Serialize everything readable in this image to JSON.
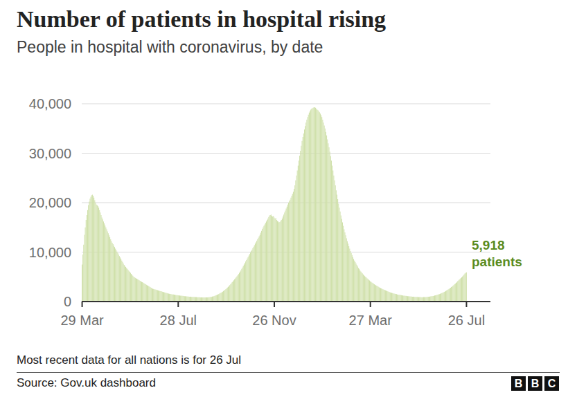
{
  "chart_data": {
    "type": "bar",
    "title": "Number of patients in hospital rising",
    "subtitle": "People in hospital with coronavirus, by date",
    "categories": [
      "29 Mar",
      null,
      null,
      null,
      null,
      null,
      null,
      null,
      null,
      null,
      null,
      null,
      null,
      null,
      null,
      null,
      null,
      null,
      null,
      null,
      null,
      null,
      null,
      null,
      null,
      null,
      null,
      null,
      null,
      null,
      null,
      null,
      null,
      null,
      null,
      null,
      null,
      null,
      null,
      null,
      null,
      null,
      null,
      null,
      null,
      null,
      null,
      null,
      null,
      null,
      null,
      null,
      null,
      null,
      null,
      null,
      null,
      null,
      null,
      null,
      null,
      null,
      null,
      null,
      null,
      null,
      null,
      null,
      null,
      null,
      null,
      null,
      null,
      null,
      null,
      null,
      null,
      null,
      null,
      null,
      null,
      null,
      null,
      null,
      null,
      null,
      null,
      null,
      null,
      null,
      null,
      null,
      null,
      null,
      null,
      null,
      null,
      null,
      null,
      null,
      null,
      null,
      null,
      null,
      null,
      null,
      null,
      null,
      null,
      null,
      null,
      null,
      null,
      null,
      null,
      null,
      null,
      null,
      null,
      null,
      null,
      "28 Jul",
      null,
      null,
      null,
      null,
      null,
      null,
      null,
      null,
      null,
      null,
      null,
      null,
      null,
      null,
      null,
      null,
      null,
      null,
      null,
      null,
      null,
      null,
      null,
      null,
      null,
      null,
      null,
      null,
      null,
      null,
      null,
      null,
      null,
      null,
      null,
      null,
      null,
      null,
      null,
      null,
      null,
      null,
      null,
      null,
      null,
      null,
      null,
      null,
      null,
      null,
      null,
      null,
      null,
      null,
      null,
      null,
      null,
      null,
      null,
      null,
      null,
      null,
      null,
      null,
      null,
      null,
      null,
      null,
      null,
      null,
      null,
      null,
      null,
      null,
      null,
      null,
      null,
      null,
      null,
      null,
      null,
      null,
      null,
      null,
      null,
      null,
      null,
      null,
      null,
      null,
      null,
      null,
      null,
      null,
      null,
      null,
      null,
      null,
      null,
      null,
      null,
      null,
      null,
      null,
      null,
      null,
      null,
      null,
      null,
      null,
      null,
      null,
      null,
      null,
      null,
      null,
      null,
      null,
      null,
      null,
      "26 Nov",
      null,
      null,
      null,
      null,
      null,
      null,
      null,
      null,
      null,
      null,
      null,
      null,
      null,
      null,
      null,
      null,
      null,
      null,
      null,
      null,
      null,
      null,
      null,
      null,
      null,
      null,
      null,
      null,
      null,
      null,
      null,
      null,
      null,
      null,
      null,
      null,
      null,
      null,
      null,
      null,
      null,
      null,
      null,
      null,
      null,
      null,
      null,
      null,
      null,
      null,
      null,
      null,
      null,
      null,
      null,
      null,
      null,
      null,
      null,
      null,
      null,
      null,
      null,
      null,
      null,
      null,
      null,
      null,
      null,
      null,
      null,
      null,
      null,
      null,
      null,
      null,
      null,
      null,
      null,
      null,
      null,
      null,
      null,
      null,
      null,
      null,
      null,
      null,
      null,
      null,
      null,
      null,
      null,
      null,
      null,
      null,
      null,
      null,
      null,
      null,
      null,
      null,
      null,
      null,
      null,
      null,
      null,
      null,
      null,
      null,
      null,
      null,
      null,
      null,
      null,
      null,
      null,
      null,
      null,
      null,
      "27 Mar",
      null,
      null,
      null,
      null,
      null,
      null,
      null,
      null,
      null,
      null,
      null,
      null,
      null,
      null,
      null,
      null,
      null,
      null,
      null,
      null,
      null,
      null,
      null,
      null,
      null,
      null,
      null,
      null,
      null,
      null,
      null,
      null,
      null,
      null,
      null,
      null,
      null,
      null,
      null,
      null,
      null,
      null,
      null,
      null,
      null,
      null,
      null,
      null,
      null,
      null,
      null,
      null,
      null,
      null,
      null,
      null,
      null,
      null,
      null,
      null,
      null,
      null,
      null,
      null,
      null,
      null,
      null,
      null,
      null,
      null,
      null,
      null,
      null,
      null,
      null,
      null,
      null,
      null,
      null,
      null,
      null,
      null,
      null,
      null,
      null,
      null,
      null,
      null,
      null,
      null,
      null,
      null,
      null,
      null,
      null,
      null,
      null,
      null,
      null,
      null,
      null,
      null,
      null,
      null,
      null,
      null,
      null,
      null,
      null,
      null,
      null,
      null,
      null,
      null,
      null,
      null,
      null,
      null,
      null,
      null,
      "26 Jul"
    ],
    "values": [
      7500,
      9500,
      11500,
      13500,
      15000,
      16500,
      17500,
      18500,
      19500,
      20200,
      20800,
      21200,
      21500,
      21600,
      21400,
      21000,
      20500,
      20000,
      19600,
      19500,
      19300,
      19000,
      18500,
      18000,
      17500,
      17000,
      16600,
      16200,
      15800,
      15400,
      15000,
      14600,
      14200,
      13800,
      13400,
      13000,
      12600,
      12200,
      11900,
      11600,
      11300,
      11000,
      10700,
      10400,
      10100,
      9800,
      9500,
      9200,
      8900,
      8600,
      8300,
      8000,
      7700,
      7400,
      7200,
      7000,
      6800,
      6600,
      6400,
      6200,
      6000,
      5800,
      5600,
      5400,
      5200,
      5000,
      4900,
      4800,
      4700,
      4600,
      4500,
      4400,
      4300,
      4200,
      4100,
      4000,
      3900,
      3800,
      3700,
      3600,
      3500,
      3400,
      3300,
      3200,
      3100,
      3000,
      2900,
      2800,
      2700,
      2600,
      2550,
      2500,
      2450,
      2400,
      2350,
      2300,
      2250,
      2200,
      2150,
      2100,
      2050,
      2000,
      1950,
      1900,
      1850,
      1800,
      1750,
      1700,
      1650,
      1600,
      1570,
      1540,
      1510,
      1480,
      1450,
      1420,
      1390,
      1360,
      1330,
      1300,
      1280,
      1260,
      1240,
      1220,
      1200,
      1180,
      1160,
      1140,
      1120,
      1100,
      1080,
      1060,
      1040,
      1020,
      1000,
      990,
      980,
      970,
      960,
      950,
      940,
      930,
      920,
      910,
      900,
      890,
      880,
      870,
      860,
      850,
      850,
      840,
      840,
      830,
      830,
      830,
      840,
      840,
      850,
      860,
      880,
      900,
      930,
      960,
      1000,
      1050,
      1100,
      1160,
      1220,
      1290,
      1360,
      1440,
      1520,
      1610,
      1700,
      1800,
      1900,
      2000,
      2120,
      2250,
      2380,
      2520,
      2670,
      2820,
      2980,
      3150,
      3320,
      3500,
      3700,
      3900,
      4100,
      4300,
      4500,
      4700,
      4900,
      5100,
      5300,
      5550,
      5800,
      6050,
      6300,
      6600,
      6900,
      7200,
      7500,
      7800,
      8100,
      8400,
      8700,
      9000,
      9300,
      9600,
      9900,
      10200,
      10500,
      10800,
      11100,
      11400,
      11700,
      12000,
      12300,
      12600,
      12900,
      13200,
      13500,
      13900,
      14300,
      14700,
      15000,
      15300,
      15600,
      15900,
      16200,
      16500,
      16800,
      17100,
      17400,
      17500,
      17600,
      17300,
      17200,
      17300,
      17000,
      16800,
      16900,
      16500,
      16300,
      16200,
      16000,
      16100,
      16300,
      16500,
      16800,
      17200,
      17600,
      18000,
      18400,
      18800,
      19200,
      19600,
      20000,
      20300,
      20600,
      21000,
      21400,
      21800,
      22200,
      22800,
      23500,
      24500,
      25500,
      26500,
      27500,
      28500,
      29500,
      30500,
      31500,
      32500,
      33300,
      34000,
      34800,
      35500,
      36200,
      36800,
      37300,
      37800,
      38200,
      38500,
      38800,
      39000,
      39100,
      39200,
      39300,
      39250,
      39200,
      39000,
      38800,
      38700,
      38500,
      38300,
      38000,
      37700,
      37300,
      36800,
      36200,
      35600,
      35000,
      34300,
      33600,
      32800,
      32000,
      31200,
      30300,
      29400,
      28500,
      27500,
      26500,
      25500,
      24500,
      23500,
      22500,
      21600,
      20700,
      19800,
      19000,
      18200,
      17400,
      16700,
      16000,
      15300,
      14600,
      14000,
      13400,
      12800,
      12200,
      11700,
      11200,
      10700,
      10200,
      9800,
      9400,
      9000,
      8600,
      8300,
      8000,
      7700,
      7400,
      7100,
      6800,
      6600,
      6300,
      6100,
      5900,
      5700,
      5500,
      5300,
      5150,
      5000,
      4850,
      4700,
      4550,
      4400,
      4250,
      4100,
      3980,
      3860,
      3740,
      3620,
      3500,
      3400,
      3300,
      3200,
      3100,
      3000,
      2900,
      2800,
      2720,
      2640,
      2560,
      2480,
      2400,
      2330,
      2260,
      2190,
      2120,
      2050,
      1990,
      1930,
      1870,
      1810,
      1760,
      1710,
      1660,
      1610,
      1570,
      1530,
      1490,
      1450,
      1410,
      1380,
      1350,
      1320,
      1290,
      1260,
      1230,
      1200,
      1180,
      1160,
      1140,
      1120,
      1100,
      1080,
      1060,
      1040,
      1020,
      1000,
      990,
      980,
      970,
      960,
      950,
      940,
      930,
      920,
      910,
      900,
      900,
      890,
      890,
      890,
      900,
      900,
      910,
      920,
      930,
      950,
      970,
      990,
      1010,
      1040,
      1070,
      1100,
      1130,
      1170,
      1210,
      1250,
      1300,
      1350,
      1400,
      1460,
      1520,
      1580,
      1650,
      1720,
      1790,
      1870,
      1950,
      2040,
      2130,
      2230,
      2330,
      2440,
      2550,
      2670,
      2790,
      2920,
      3050,
      3190,
      3330,
      3480,
      3630,
      3790,
      3950,
      4110,
      4270,
      4430,
      4590,
      4750,
      4910,
      5060,
      5250,
      5450,
      5650,
      5800,
      5918
    ],
    "color": "#cfe0a9",
    "ylim": [
      0,
      40000
    ],
    "yticks": [
      0,
      {
        "value": 10000,
        "label": "10,000"
      },
      {
        "value": 20000,
        "label": "20,000"
      },
      {
        "value": 30000,
        "label": "30,000"
      },
      {
        "value": 40000,
        "label": "40,000"
      }
    ],
    "grid": true,
    "annotation": "5,918 patients",
    "note": "Most recent data for all nations is for 26 Jul",
    "source": "Source: Gov.uk dashboard",
    "logo": "BBC"
  }
}
